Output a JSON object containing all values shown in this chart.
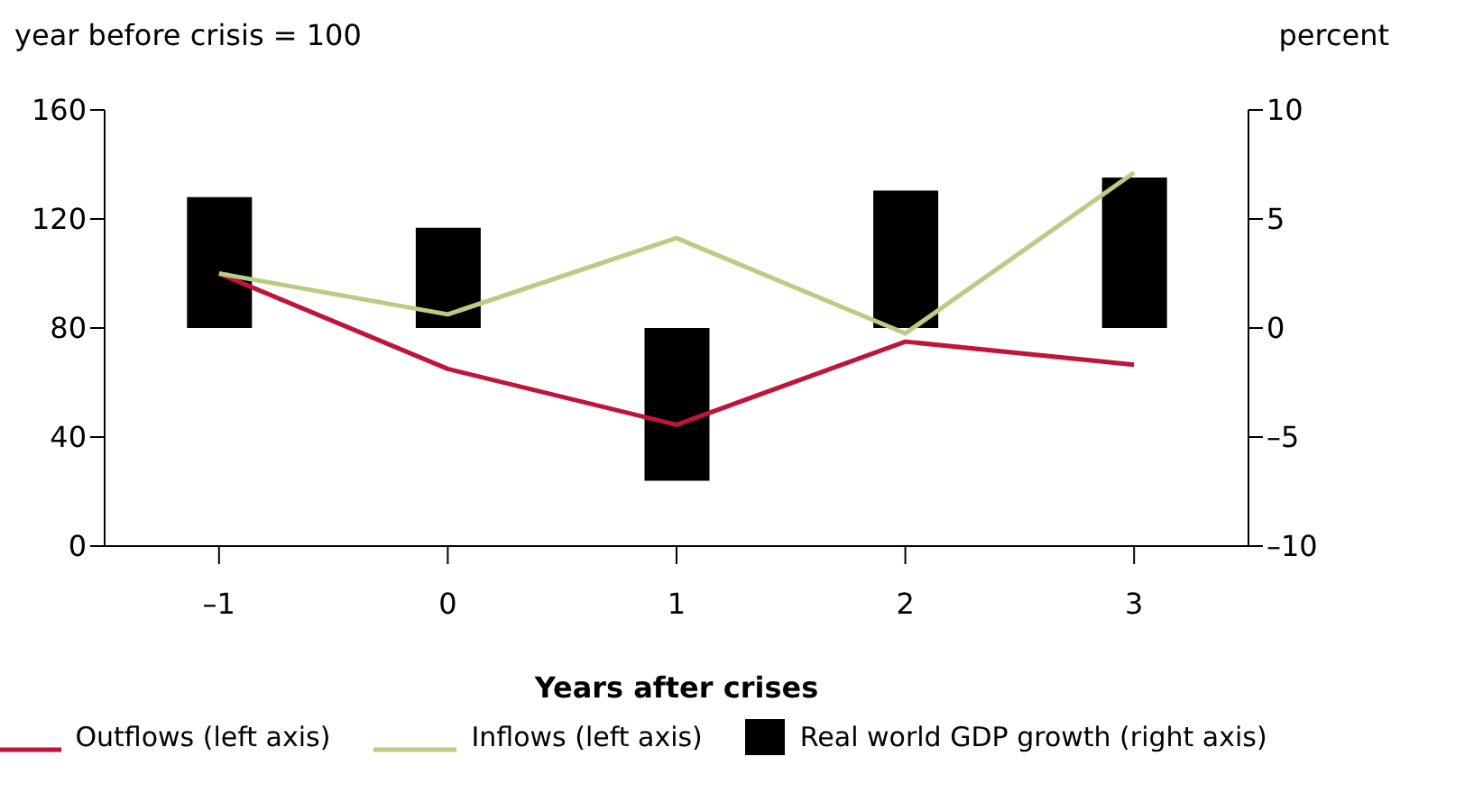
{
  "chart_data": {
    "type": "line",
    "ylabel": "year before crisis = 100",
    "y2label": "percent",
    "xlabel": "Years after crises",
    "categories": [
      "–1",
      "0",
      "1",
      "2",
      "3"
    ],
    "series": [
      {
        "name": "Outflows (left axis)",
        "color": "#c0143c",
        "values": [
          100,
          65,
          44.5,
          75,
          66.5
        ]
      },
      {
        "name": "Inflows (left axis)",
        "color": "#b8cc84",
        "values": [
          100,
          85,
          113,
          78,
          137
        ]
      },
      {
        "name": "Real world GDP growth (right axis)",
        "type": "bar",
        "axis": "y2",
        "color": "#000000",
        "values": [
          6,
          4.6,
          -7,
          6.3,
          6.9
        ]
      }
    ],
    "ylim": [
      0,
      160
    ],
    "yticks": [
      0,
      40,
      80,
      120,
      160
    ],
    "y2lim": [
      -10,
      10
    ],
    "y2ticks": [
      {
        "value": -10,
        "label": "–10"
      },
      {
        "value": -5,
        "label": "–5"
      },
      0,
      5,
      10
    ],
    "legend": "bottom",
    "marker": "none",
    "line_style": "solid"
  }
}
